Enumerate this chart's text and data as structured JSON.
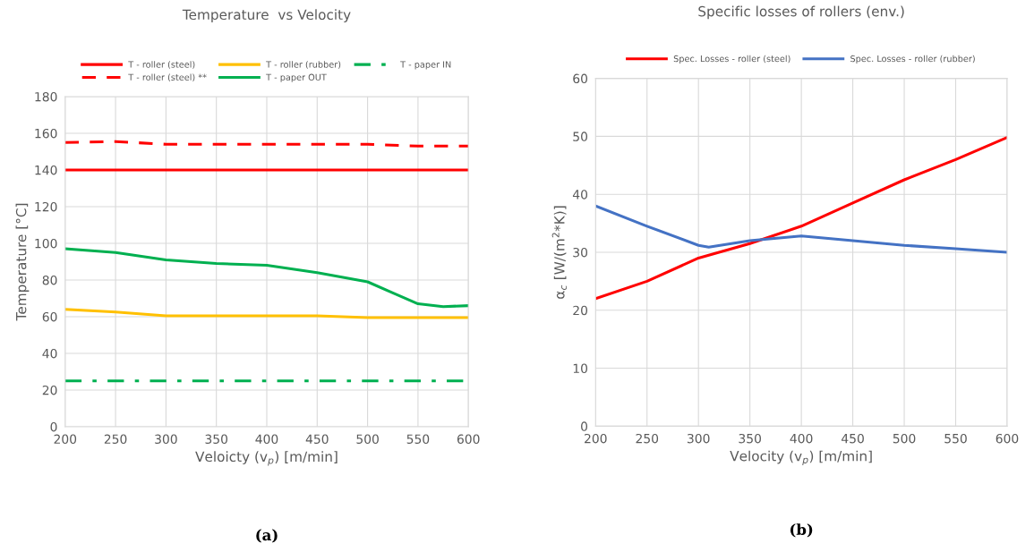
{
  "chart_data": [
    {
      "type": "line",
      "title": "Temperature  vs Velocity",
      "xlabel": "Veloicty (v$_{p}$) [m/min]",
      "ylabel": "Temperature [°C]",
      "x": [
        200,
        250,
        300,
        350,
        400,
        450,
        500,
        550,
        600
      ],
      "series": [
        {
          "name": "T - roller (steel)",
          "color": "#ff0000",
          "line_style": "solid",
          "values": [
            140,
            140,
            140,
            140,
            140,
            140,
            140,
            140,
            140
          ]
        },
        {
          "name": "T - roller (steel) **",
          "color": "#ff0000",
          "line_style": "dashed",
          "values": [
            155,
            155.5,
            154,
            154,
            154,
            154,
            154,
            153,
            153
          ]
        },
        {
          "name": "T - roller (rubber)",
          "color": "#ffc000",
          "line_style": "solid",
          "values": [
            64,
            62.5,
            60.5,
            60.5,
            60.5,
            60.5,
            59.5,
            59.5,
            59.5
          ]
        },
        {
          "name": "T - paper OUT",
          "color": "#00b050",
          "line_style": "solid",
          "x": [
            200,
            250,
            300,
            350,
            400,
            450,
            500,
            525,
            550,
            575,
            600
          ],
          "values": [
            97,
            95,
            91,
            89,
            88,
            84,
            79,
            73,
            67,
            65.5,
            66
          ]
        },
        {
          "name": "T - paper IN",
          "color": "#00b050",
          "line_style": "dashdot",
          "values": [
            25,
            25,
            25,
            25,
            25,
            25,
            25,
            25,
            25
          ]
        }
      ],
      "xlim": [
        200,
        600
      ],
      "xticks": [
        200,
        250,
        300,
        350,
        400,
        450,
        500,
        550,
        600
      ],
      "ylim": [
        0,
        180
      ],
      "yticks": [
        0,
        20,
        40,
        60,
        80,
        100,
        120,
        140,
        160,
        180
      ],
      "grid": true,
      "legend": "top",
      "annotations": [
        "(a)"
      ]
    },
    {
      "type": "line",
      "title": "Specific losses of rollers (env.)",
      "xlabel": "Velocity (v$_{p}$) [m/min]",
      "ylabel": "α$_{c}$ [W/(m$^{2}$*K)]",
      "x": [
        200,
        250,
        300,
        350,
        400,
        450,
        500,
        550,
        600
      ],
      "series": [
        {
          "name": "Spec. Losses - roller (steel)",
          "color": "#ff0000",
          "line_style": "solid",
          "values": [
            22,
            25,
            29,
            31.5,
            34.5,
            38.5,
            42.5,
            46,
            49.8
          ]
        },
        {
          "name": "Spec. Losses - roller (rubber)",
          "color": "#4472c4",
          "line_style": "solid",
          "x": [
            200,
            250,
            300,
            310,
            350,
            400,
            450,
            500,
            550,
            600
          ],
          "values": [
            38,
            34.5,
            31.2,
            30.9,
            32,
            32.8,
            32,
            31.2,
            30.6,
            30
          ]
        }
      ],
      "xlim": [
        200,
        600
      ],
      "xticks": [
        200,
        250,
        300,
        350,
        400,
        450,
        500,
        550,
        600
      ],
      "ylim": [
        0,
        60
      ],
      "yticks": [
        0,
        10,
        20,
        30,
        40,
        50,
        60
      ],
      "grid": true,
      "legend": "top",
      "annotations": [
        "(b)"
      ]
    }
  ]
}
